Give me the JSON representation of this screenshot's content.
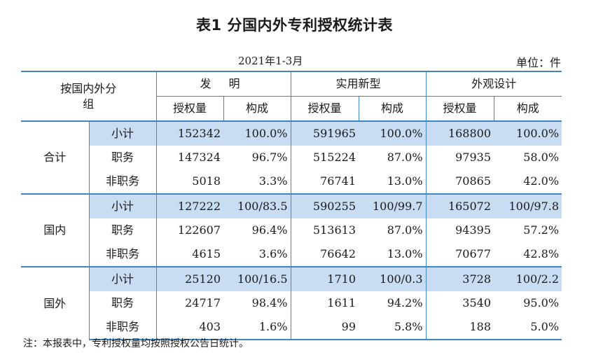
{
  "title": "表1  分国内外专利授权统计表",
  "period": "2021年1-3月",
  "unit": "单位：件",
  "header": {
    "row_label": "按国内外分组",
    "groups": [
      "发  明",
      "实用新型",
      "外观设计"
    ],
    "sub": [
      "授权量",
      "构成"
    ]
  },
  "sections": [
    {
      "name": "合计",
      "rows": [
        {
          "label": "小计",
          "values": [
            "152342",
            "100.0%",
            "591965",
            "100.0%",
            "168800",
            "100.0%"
          ]
        },
        {
          "label": "职务",
          "values": [
            "147324",
            "96.7%",
            "515224",
            "87.0%",
            "97935",
            "58.0%"
          ]
        },
        {
          "label": "非职务",
          "values": [
            "5018",
            "3.3%",
            "76741",
            "13.0%",
            "70865",
            "42.0%"
          ]
        }
      ]
    },
    {
      "name": "国内",
      "rows": [
        {
          "label": "小计",
          "values": [
            "127222",
            "100/83.5",
            "590255",
            "100/99.7",
            "165072",
            "100/97.8"
          ]
        },
        {
          "label": "职务",
          "values": [
            "122607",
            "96.4%",
            "513613",
            "87.0%",
            "94395",
            "57.2%"
          ]
        },
        {
          "label": "非职务",
          "values": [
            "4615",
            "3.6%",
            "76642",
            "13.0%",
            "70677",
            "42.8%"
          ]
        }
      ]
    },
    {
      "name": "国外",
      "rows": [
        {
          "label": "小计",
          "values": [
            "25120",
            "100/16.5",
            "1710",
            "100/0.3",
            "3728",
            "100/2.2"
          ]
        },
        {
          "label": "职务",
          "values": [
            "24717",
            "98.4%",
            "1611",
            "94.2%",
            "3540",
            "95.0%"
          ]
        },
        {
          "label": "非职务",
          "values": [
            "403",
            "1.6%",
            "99",
            "5.8%",
            "188",
            "5.0%"
          ]
        }
      ]
    }
  ],
  "note": "注：本报表中，专利授权量均按照授权公告日统计。",
  "colors": {
    "border": "#3f86c7",
    "highlight": "#c8dcf3"
  }
}
